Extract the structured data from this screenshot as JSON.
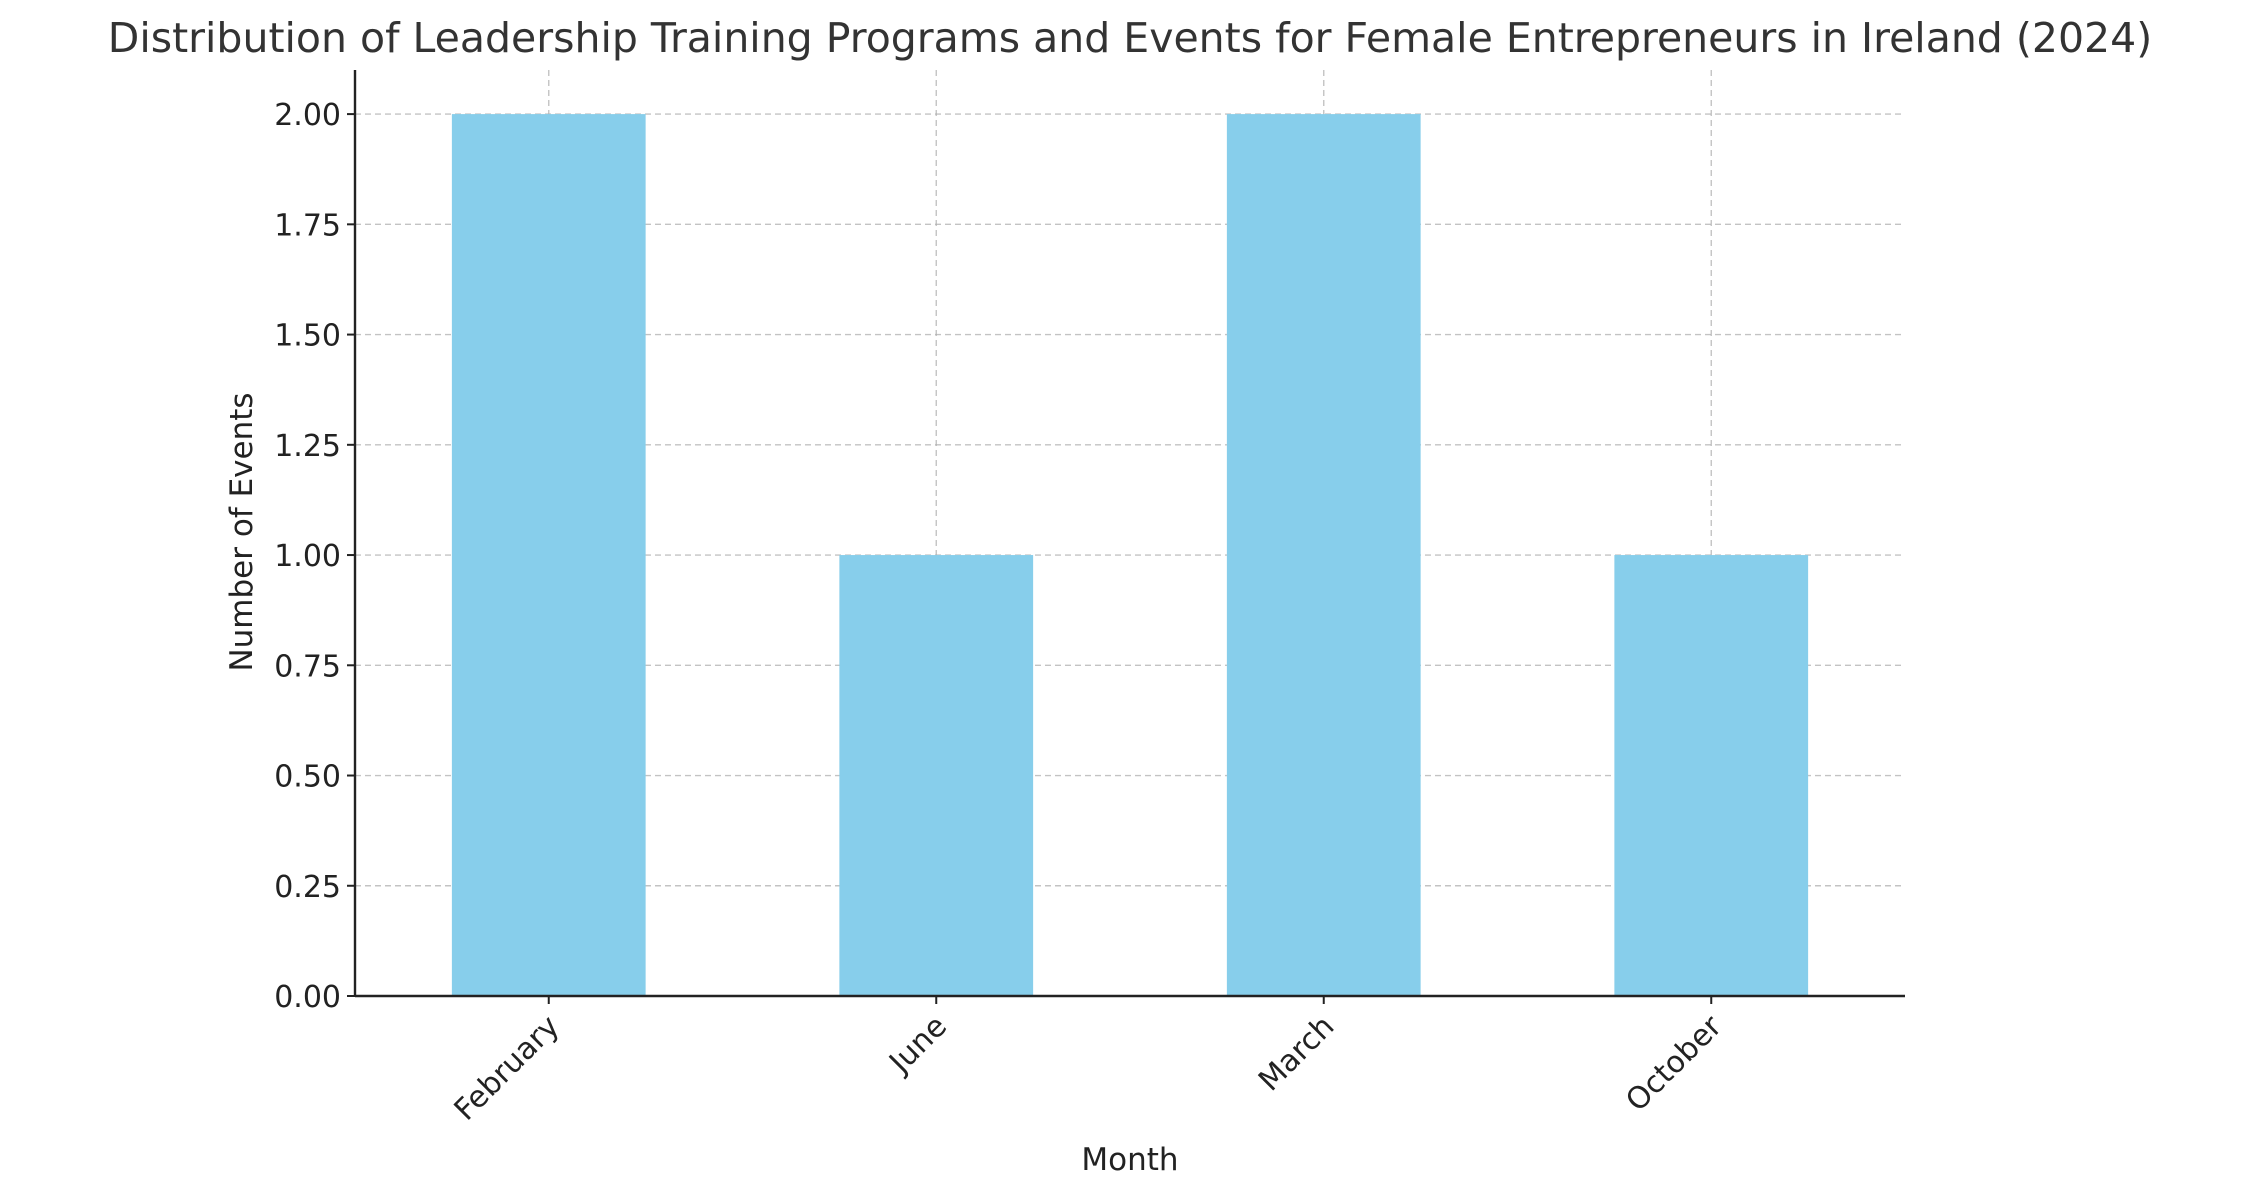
{
  "chart_data": {
    "type": "bar",
    "title": "Distribution of Leadership Training Programs and Events for Female Entrepreneurs in Ireland (2024)",
    "xlabel": "Month",
    "ylabel": "Number of Events",
    "categories": [
      "February",
      "June",
      "March",
      "October"
    ],
    "values": [
      2,
      1,
      2,
      1
    ],
    "ylim": [
      0,
      2.1
    ],
    "yticks": [
      "0.00",
      "0.25",
      "0.50",
      "0.75",
      "1.00",
      "1.25",
      "1.50",
      "1.75",
      "2.00"
    ],
    "bar_color": "#87ceeb",
    "grid": true,
    "legend": "none"
  }
}
